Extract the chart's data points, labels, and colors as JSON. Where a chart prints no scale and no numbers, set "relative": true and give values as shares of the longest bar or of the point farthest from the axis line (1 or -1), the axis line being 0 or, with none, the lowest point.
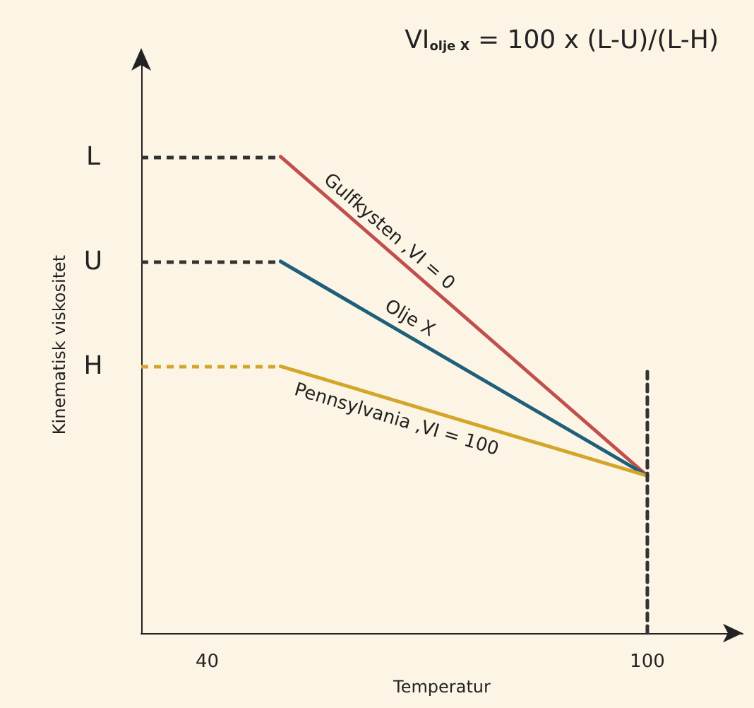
{
  "chart_data": {
    "type": "line",
    "title": "VI$_{olje X}$ = 100 x (L-U)/(L-H)",
    "xlabel": "Temperatur",
    "ylabel": "Kinematisk viskositet",
    "xlim": [
      31,
      113
    ],
    "xticks": [
      40,
      100
    ],
    "relative": true,
    "ref_lines": [
      {
        "axis": "y",
        "value": 1,
        "label": "L",
        "color": "#333333",
        "line_style": "dashed"
      },
      {
        "axis": "y",
        "value": 0.78,
        "label": "U",
        "color": "#333333",
        "line_style": "dashed"
      },
      {
        "axis": "y",
        "value": 0.56,
        "label": "H",
        "color": "#d4a52a",
        "line_style": "dashed"
      }
    ],
    "grid": false,
    "legend": false,
    "marker": "none",
    "line_style": "solid",
    "x": [
      50,
      100
    ],
    "series": [
      {
        "name": "Gulfkysten ,VI = 0",
        "color": "#c0504d",
        "values": [
          1,
          0.33
        ]
      },
      {
        "name": "Olje X",
        "color": "#1f5f7a",
        "values": [
          0.78,
          0.33
        ]
      },
      {
        "name": "Pennsylvania ,VI = 100",
        "color": "#d4a52a",
        "values": [
          0.56,
          0.33
        ]
      },
      {
        "color": "#333333",
        "x": [
          100,
          100
        ],
        "values": [
          0,
          0.56
        ],
        "line_style": "dashed"
      }
    ]
  }
}
